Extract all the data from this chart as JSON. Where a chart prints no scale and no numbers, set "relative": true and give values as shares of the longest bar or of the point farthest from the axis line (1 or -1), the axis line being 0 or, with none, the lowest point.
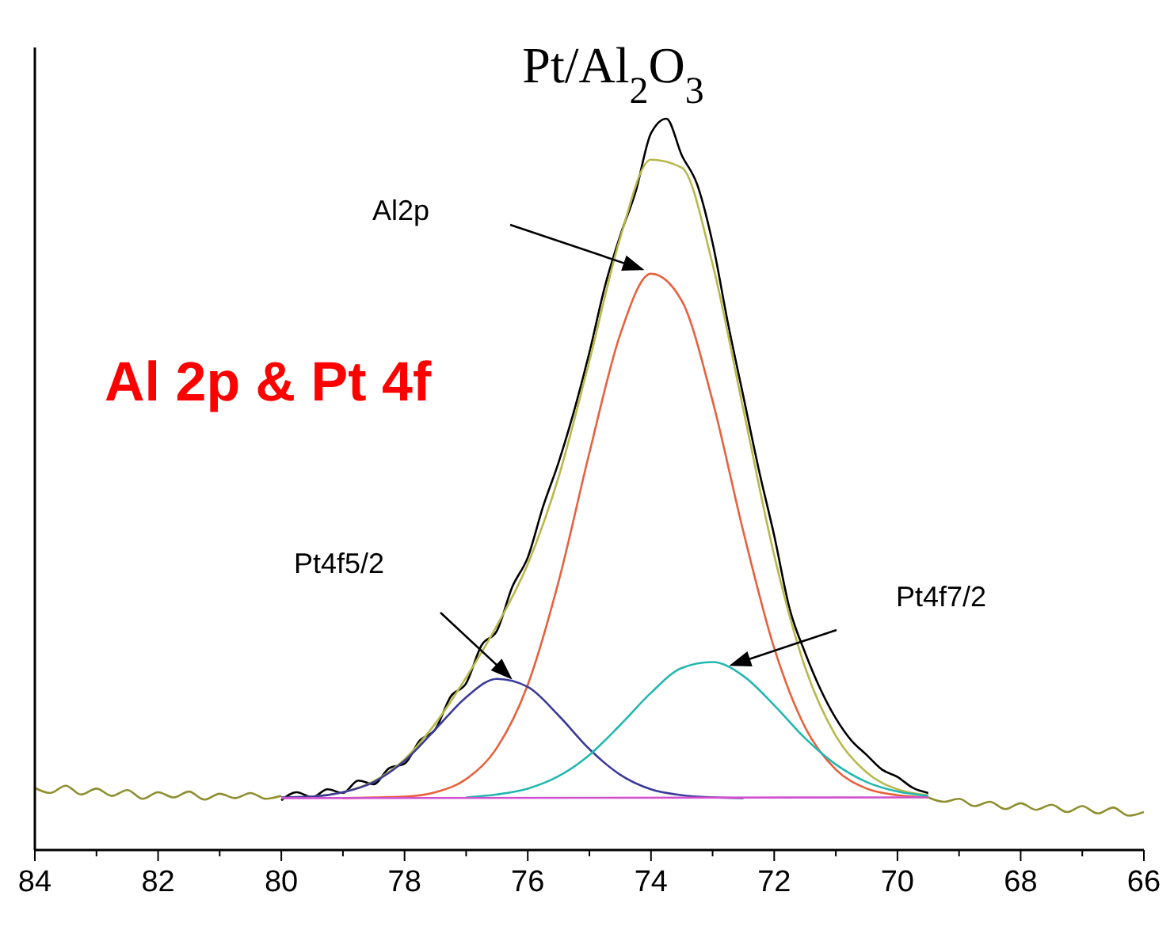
{
  "chart_data": {
    "type": "line",
    "title": "Pt/Al$_{2}$O$_{3}$",
    "relative": true,
    "xlim": [
      84,
      66
    ],
    "xticks": [
      84,
      82,
      80,
      78,
      76,
      74,
      72,
      70,
      68,
      66,
      {
        "value": 83,
        "label": null
      },
      {
        "value": 81,
        "label": null
      },
      {
        "value": 79,
        "label": null
      },
      {
        "value": 77,
        "label": null
      },
      {
        "value": 75,
        "label": null
      },
      {
        "value": 73,
        "label": null
      },
      {
        "value": 71,
        "label": null
      },
      {
        "value": 69,
        "label": null
      },
      {
        "value": 67,
        "label": null
      }
    ],
    "grid": false,
    "legend": false,
    "marker": "none",
    "line_style": "solid",
    "series": [
      {
        "color": "#8f8f30",
        "x": [
          84,
          83.75,
          83.5,
          83.25,
          83,
          82.75,
          82.5,
          82.25,
          82,
          81.75,
          81.5,
          81.25,
          81,
          80.75,
          80.5,
          80.25,
          80,
          79.9,
          69.5,
          69.25,
          69,
          68.75,
          68.5,
          68.25,
          68,
          67.75,
          67.5,
          67.25,
          67,
          66.75,
          66.5,
          66.25,
          66
        ],
        "values": [
          0.085,
          0.078,
          0.088,
          0.076,
          0.084,
          0.074,
          0.082,
          0.07,
          0.079,
          0.072,
          0.08,
          0.069,
          0.077,
          0.071,
          0.078,
          0.07,
          0.074,
          null,
          0.072,
          0.066,
          0.07,
          0.06,
          0.066,
          0.056,
          0.064,
          0.055,
          0.062,
          0.052,
          0.06,
          0.05,
          0.058,
          0.047,
          0.052
        ]
      },
      {
        "color": "#000000",
        "x": [
          80,
          79.75,
          79.5,
          79.25,
          79,
          78.75,
          78.5,
          78.25,
          78,
          77.75,
          77.5,
          77.25,
          77,
          76.75,
          76.5,
          76.25,
          76,
          75.75,
          75.5,
          75.25,
          75,
          74.75,
          74.5,
          74.25,
          74,
          73.75,
          73.5,
          73.25,
          73,
          72.75,
          72.5,
          72.25,
          72,
          71.75,
          71.5,
          71.25,
          71,
          70.75,
          70.5,
          70.25,
          70,
          69.75,
          69.5
        ],
        "values": [
          0.068,
          0.079,
          0.072,
          0.083,
          0.078,
          0.095,
          0.09,
          0.112,
          0.118,
          0.15,
          0.165,
          0.21,
          0.228,
          0.28,
          0.3,
          0.36,
          0.4,
          0.47,
          0.53,
          0.6,
          0.68,
          0.77,
          0.84,
          0.9,
          0.98,
          1.0,
          0.95,
          0.91,
          0.83,
          0.72,
          0.62,
          0.52,
          0.43,
          0.33,
          0.27,
          0.22,
          0.18,
          0.15,
          0.13,
          0.11,
          0.1,
          0.085,
          0.078
        ]
      },
      {
        "color": "#b8b84a",
        "x": [
          80,
          79.5,
          79,
          78.5,
          78,
          77.5,
          77,
          76.5,
          76,
          75.5,
          75,
          74.5,
          74,
          73.5,
          73,
          72.5,
          72,
          71.5,
          71,
          70.5,
          70,
          69.5
        ],
        "values": [
          0.071,
          0.073,
          0.079,
          0.094,
          0.124,
          0.173,
          0.236,
          0.307,
          0.391,
          0.51,
          0.669,
          0.837,
          0.944,
          0.933,
          0.801,
          0.602,
          0.403,
          0.25,
          0.156,
          0.106,
          0.083,
          0.075
        ]
      },
      {
        "color": "#e8603c",
        "x": [
          79,
          78.5,
          78,
          77.5,
          77,
          76.5,
          76,
          75.5,
          75,
          74.5,
          74,
          73.5,
          73,
          72.5,
          72,
          71.5,
          71,
          70.5,
          70,
          69.5
        ],
        "values": [
          0.071,
          0.072,
          0.073,
          0.079,
          0.097,
          0.14,
          0.226,
          0.367,
          0.543,
          0.705,
          0.788,
          0.751,
          0.614,
          0.435,
          0.276,
          0.168,
          0.11,
          0.084,
          0.075,
          0.072
        ]
      },
      {
        "color": "#3a3a9a",
        "x": [
          80,
          79.5,
          79,
          78.5,
          78,
          77.5,
          77,
          76.5,
          76,
          75.5,
          75,
          74.5,
          74,
          73.5,
          73,
          72.5
        ],
        "values": [
          0.072,
          0.073,
          0.079,
          0.093,
          0.122,
          0.165,
          0.209,
          0.234,
          0.223,
          0.184,
          0.138,
          0.103,
          0.083,
          0.075,
          0.072,
          0.071
        ]
      },
      {
        "color": "#22b8b0",
        "x": [
          77,
          76.5,
          76,
          75.5,
          75,
          74.5,
          74,
          73.5,
          73,
          72.5,
          72,
          71.5,
          71,
          70.5,
          70,
          69.5
        ],
        "values": [
          0.072,
          0.076,
          0.084,
          0.101,
          0.13,
          0.171,
          0.215,
          0.249,
          0.257,
          0.238,
          0.198,
          0.153,
          0.117,
          0.093,
          0.08,
          0.074
        ]
      },
      {
        "color": "#d050d0",
        "x": [
          80,
          69.5
        ],
        "values": [
          0.071,
          0.072
        ]
      }
    ],
    "annotations": [
      "Al2p",
      "Pt4f5/2",
      "Pt4f7/2",
      "Al 2p & Pt 4f"
    ]
  }
}
